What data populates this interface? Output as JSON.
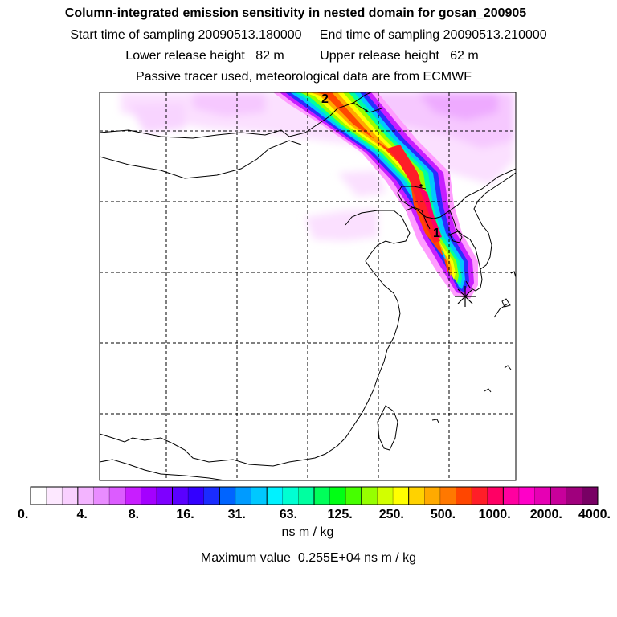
{
  "header": {
    "title": "Column-integrated emission sensitivity in nested domain for gosan_200905",
    "start_label": "Start time of sampling",
    "start_value": "20090513.180000",
    "end_label": "End time of sampling",
    "end_value": "20090513.210000",
    "lower_label": "Lower release height",
    "lower_value": "82 m",
    "upper_label": "Upper release height",
    "upper_value": "62 m",
    "tracer_note": "Passive tracer used, meteorological data are from ECMWF"
  },
  "map": {
    "trajectory_labels": [
      "2",
      "1"
    ],
    "release_marker": "release-site-star"
  },
  "colorbar": {
    "tick_labels": [
      "0.",
      "4.",
      "8.",
      "16.",
      "31.",
      "63.",
      "125.",
      "250.",
      "500.",
      "1000.",
      "2000.",
      "4000."
    ],
    "units": "ns m / kg",
    "max_label": "Maximum value",
    "max_value": "0.255E+04",
    "max_units": "ns m / kg"
  },
  "colors": {
    "bins": [
      "#ffffff",
      "#fde8ff",
      "#f9d0ff",
      "#f3b4ff",
      "#e98cff",
      "#dc5cff",
      "#c81eff",
      "#a400ff",
      "#7e00ff",
      "#5a00ff",
      "#3300ff",
      "#1a2cff",
      "#0064ff",
      "#009bff",
      "#00c8ff",
      "#00f2ff",
      "#00ffd2",
      "#00ffa0",
      "#00ff5a",
      "#00ff14",
      "#46ff00",
      "#96ff00",
      "#d2ff00",
      "#ffff00",
      "#ffd200",
      "#ffaa00",
      "#ff7800",
      "#ff4600",
      "#ff1e28",
      "#ff0064",
      "#ff00a0",
      "#ff00c8",
      "#e600b4",
      "#c8009b",
      "#a0007d",
      "#780064"
    ]
  }
}
